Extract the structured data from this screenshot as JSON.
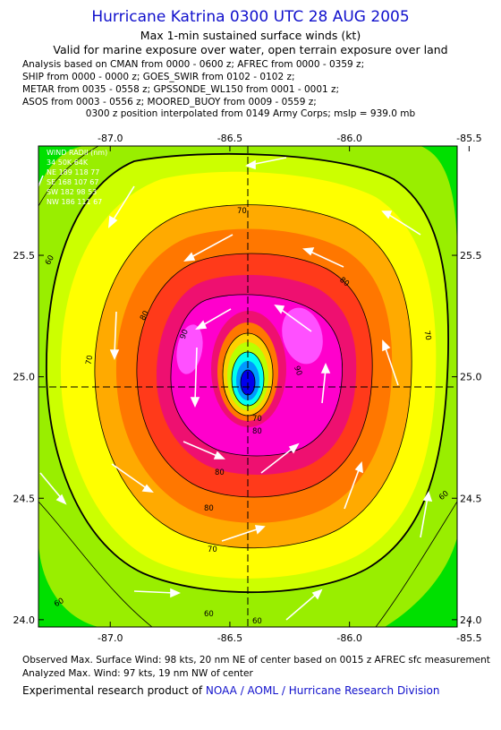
{
  "header": {
    "title": "Hurricane Katrina 0300 UTC 28 AUG 2005",
    "subtitle1": "Max 1-min sustained surface winds (kt)",
    "subtitle2": "Valid for marine exposure over water, open terrain exposure over land"
  },
  "analysis_lines": [
    "Analysis based on  CMAN from 0000 - 0600 z;  AFREC from 0000 - 0359 z;",
    "SHIP from 0000 - 0000 z;  GOES_SWIR from 0102 - 0102 z;",
    "METAR from 0035 - 0558 z;  GPSSONDE_WL150 from 0001 - 0001 z;",
    "ASOS from 0003 - 0556 z;  MOORED_BUOY from 0009 - 0559 z;"
  ],
  "position_note": "0300 z position interpolated from 0149 Army Corps; mslp = 939.0 mb",
  "wind_radii": {
    "header": "WIND RADII (nm)",
    "columns": "34  50K 64K",
    "rows": [
      "NE 189 118  77",
      "SE 168 107  67",
      "SW 182  98  53",
      "NW 186 111  67"
    ]
  },
  "map": {
    "lon_ticks": [
      "-87.0",
      "-86.5",
      "-86.0",
      "-85.5"
    ],
    "lon_values": [
      -87.0,
      -86.5,
      -86.0,
      -85.5
    ],
    "lat_ticks": [
      "25.5",
      "25.0",
      "24.5",
      "24.0"
    ],
    "lat_values": [
      25.5,
      25.0,
      24.5,
      24.0
    ],
    "lon_range": [
      -87.3,
      -85.55
    ],
    "lat_range": [
      23.97,
      25.95
    ],
    "center": {
      "lon": -86.5,
      "lat": 24.97
    },
    "contour_labels": [
      "70",
      "80",
      "80",
      "90",
      "90",
      "80",
      "70",
      "60",
      "60",
      "80",
      "60",
      "70",
      "70",
      "80",
      "70",
      "60",
      "60"
    ],
    "fill_colors": [
      "#00e000",
      "#99ee00",
      "#ccff00",
      "#ffff00",
      "#ffaa00",
      "#ff7700",
      "#ff3a1a",
      "#ee1070",
      "#ff00cc",
      "#ff50ff",
      "#ffd000",
      "#bbff00",
      "#00ffee",
      "#0099ff",
      "#0000ee"
    ]
  },
  "footer": {
    "line1": "Observed Max. Surface Wind: 98 kts, 20 nm NE of center based on 0015 z AFREC sfc measurement",
    "line2": "Analyzed Max. Wind: 97 kts, 19 nm NW of center",
    "line3_prefix": "Experimental research product of ",
    "line3_org": "NOAA / AOML / Hurricane Research Division"
  }
}
